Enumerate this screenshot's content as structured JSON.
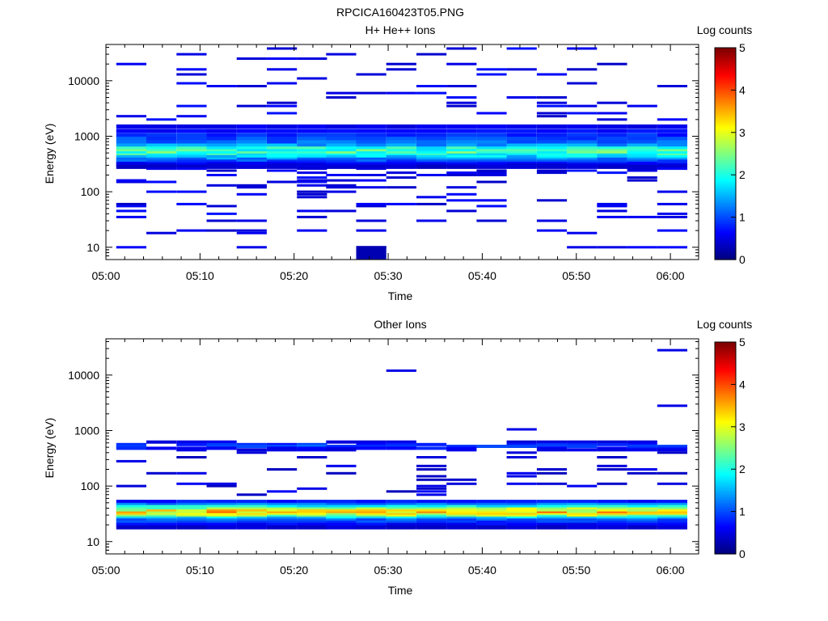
{
  "figure_title": "RPCICA160423T05.PNG",
  "chart_data": [
    {
      "type": "heatmap",
      "title": "H+ He++ Ions",
      "xlabel": "Time",
      "ylabel": "Energy (eV)",
      "x_ticks": [
        "05:00",
        "05:10",
        "05:20",
        "05:30",
        "05:40",
        "05:50",
        "06:00"
      ],
      "x_range_minutes": [
        0,
        63
      ],
      "y_scale": "log",
      "y_range": [
        6,
        45000
      ],
      "y_ticks": [
        "10",
        "100",
        "1000",
        "10000"
      ],
      "colorbar": {
        "label": "Log counts",
        "min": 0,
        "max": 5,
        "ticks": [
          "0",
          "1",
          "2",
          "3",
          "4",
          "5"
        ]
      },
      "bin_minutes": [
        2.7,
        5.9,
        9.1,
        12.3,
        15.5,
        18.7,
        21.9,
        25.0,
        28.2,
        31.4,
        34.6,
        37.8,
        41.0,
        44.2,
        47.4,
        50.6,
        53.8,
        57.0,
        60.2
      ],
      "dense_band": {
        "energies": [
          1500,
          1250,
          1050,
          900,
          780,
          680,
          600,
          540,
          490,
          450,
          420,
          380,
          350,
          320,
          300,
          280
        ],
        "profile": [
          0.5,
          0.65,
          0.8,
          0.95,
          1.1,
          1.4,
          1.9,
          2.1,
          2.2,
          2.0,
          1.7,
          1.3,
          1.0,
          0.7,
          0.5,
          0.4
        ]
      },
      "sparse_energies": [
        10,
        18,
        20,
        30,
        35,
        40,
        45,
        55,
        60,
        70,
        80,
        90,
        100,
        120,
        130,
        150,
        160,
        180,
        200,
        220,
        240,
        260,
        2000,
        2300,
        2600,
        3000,
        3500,
        4000,
        5000,
        6000,
        8000,
        9000,
        11000,
        13000,
        16000,
        20000,
        25000,
        30000,
        38000
      ],
      "sparse_level": 0.6
    },
    {
      "type": "heatmap",
      "title": "Other Ions",
      "xlabel": "Time",
      "ylabel": "Energy (eV)",
      "x_ticks": [
        "05:00",
        "05:10",
        "05:20",
        "05:30",
        "05:40",
        "05:50",
        "06:00"
      ],
      "x_range_minutes": [
        0,
        63
      ],
      "y_scale": "log",
      "y_range": [
        6,
        45000
      ],
      "y_ticks": [
        "10",
        "100",
        "1000",
        "10000"
      ],
      "colorbar": {
        "label": "Log counts",
        "min": 0,
        "max": 5,
        "ticks": [
          "0",
          "1",
          "2",
          "3",
          "4",
          "5"
        ]
      },
      "bin_minutes": [
        2.7,
        5.9,
        9.1,
        12.3,
        15.5,
        18.7,
        21.9,
        25.0,
        28.2,
        31.4,
        34.6,
        37.8,
        41.0,
        44.2,
        47.4,
        50.6,
        53.8,
        57.0,
        60.2
      ],
      "dense_band": {
        "energies": [
          52,
          46,
          42,
          38,
          35,
          32,
          30,
          28,
          26,
          24,
          22,
          20,
          18
        ],
        "profile": [
          0.7,
          1.2,
          1.9,
          2.6,
          3.1,
          3.3,
          3.0,
          2.6,
          1.6,
          1.1,
          0.9,
          0.6,
          0.4
        ]
      },
      "secondary_band": {
        "energies": [
          620,
          560,
          520,
          480,
          450
        ],
        "profile": [
          0.5,
          0.8,
          1.0,
          0.7,
          0.5
        ]
      },
      "sparse_energies": [
        70,
        80,
        90,
        100,
        110,
        120,
        130,
        150,
        170,
        200,
        230,
        280,
        330,
        400
      ],
      "sparse_level": 0.5,
      "outliers": [
        {
          "x": 31.4,
          "e": 12000
        },
        {
          "x": 44.2,
          "e": 1050
        },
        {
          "x": 60.2,
          "e": 28000
        },
        {
          "x": 60.2,
          "e": 2800
        }
      ]
    }
  ]
}
